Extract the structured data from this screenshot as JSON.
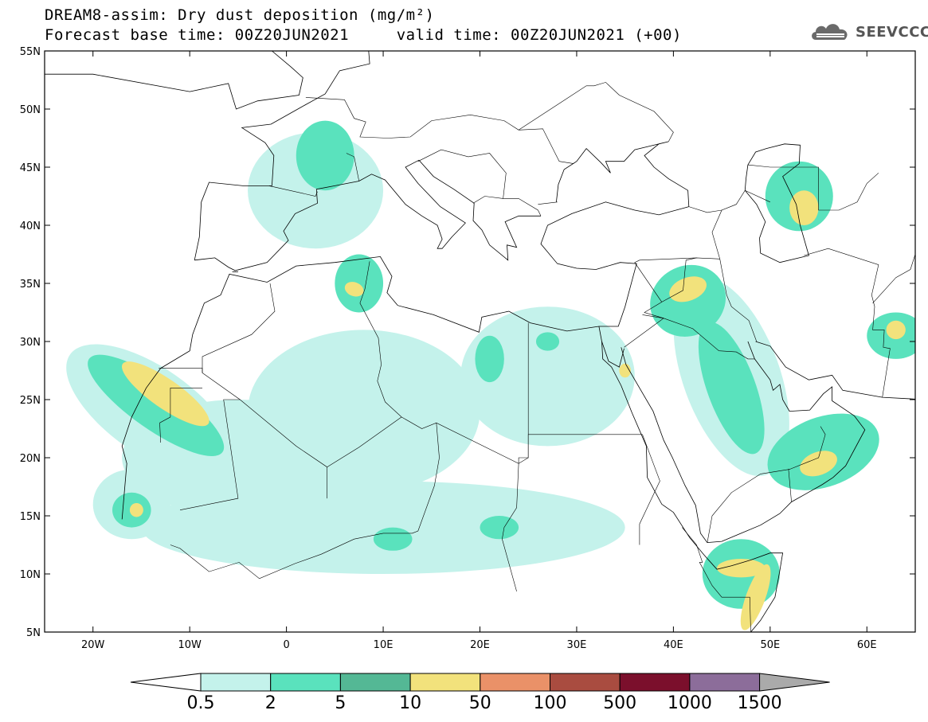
{
  "header": {
    "title_line1": "DREAM8-assim: Dry dust deposition (mg/m²)",
    "title_line2": "Forecast base time: 00Z20JUN2021     valid time: 00Z20JUN2021 (+00)"
  },
  "logo": {
    "text": "SEEVCCC",
    "icon": "cloud-logo-icon"
  },
  "map": {
    "projection": "latlon",
    "lon_range": [
      -25,
      65
    ],
    "lat_range": [
      5,
      55
    ],
    "lat_ticks": [
      {
        "value": 5,
        "label": "5N"
      },
      {
        "value": 10,
        "label": "10N"
      },
      {
        "value": 15,
        "label": "15N"
      },
      {
        "value": 20,
        "label": "20N"
      },
      {
        "value": 25,
        "label": "25N"
      },
      {
        "value": 30,
        "label": "30N"
      },
      {
        "value": 35,
        "label": "35N"
      },
      {
        "value": 40,
        "label": "40N"
      },
      {
        "value": 45,
        "label": "45N"
      },
      {
        "value": 50,
        "label": "50N"
      },
      {
        "value": 55,
        "label": "55N"
      }
    ],
    "lon_ticks": [
      {
        "value": -20,
        "label": "20W"
      },
      {
        "value": -10,
        "label": "10W"
      },
      {
        "value": 0,
        "label": "0"
      },
      {
        "value": 10,
        "label": "10E"
      },
      {
        "value": 20,
        "label": "20E"
      },
      {
        "value": 30,
        "label": "30E"
      },
      {
        "value": 40,
        "label": "40E"
      },
      {
        "value": 50,
        "label": "50E"
      },
      {
        "value": 60,
        "label": "60E"
      }
    ]
  },
  "colors": {
    "levels": [
      "#c4f2eb",
      "#5ae2bd",
      "#54b895",
      "#f2e27c",
      "#ea9168",
      "#a94c40",
      "#7b0f2c",
      "#8c6d9a"
    ],
    "low_arrow": "#ffffff",
    "high_arrow": "#aaaaaa",
    "coast": "#000000"
  },
  "colorbar": {
    "labels": [
      "0.5",
      "2",
      "5",
      "10",
      "50",
      "100",
      "500",
      "1000",
      "1500"
    ]
  },
  "deposition_regions": [
    {
      "name": "NW Africa coast",
      "lon": -14,
      "lat": 24,
      "rx": 4.5,
      "ry": 8.5,
      "rot": -55,
      "level": 0
    },
    {
      "name": "NW Africa coast",
      "lon": -13.5,
      "lat": 24.5,
      "rx": 2.5,
      "ry": 7,
      "rot": -55,
      "level": 1
    },
    {
      "name": "NW Africa coast",
      "lon": -12.5,
      "lat": 25.5,
      "rx": 1.5,
      "ry": 4.5,
      "rot": -55,
      "level": 3
    },
    {
      "name": "Senegal",
      "lon": -16,
      "lat": 16,
      "rx": 4,
      "ry": 3,
      "rot": 0,
      "level": 0
    },
    {
      "name": "Senegal",
      "lon": -16,
      "lat": 15.5,
      "rx": 2,
      "ry": 1.5,
      "rot": 0,
      "level": 1
    },
    {
      "name": "Senegal",
      "lon": -15.5,
      "lat": 15.5,
      "rx": 0.7,
      "ry": 0.6,
      "rot": 0,
      "level": 3
    },
    {
      "name": "Sahara west",
      "lon": -5,
      "lat": 20,
      "rx": 12,
      "ry": 5,
      "rot": 0,
      "level": 0
    },
    {
      "name": "Sahara central",
      "lon": 8,
      "lat": 24,
      "rx": 12,
      "ry": 7,
      "rot": 0,
      "level": 0
    },
    {
      "name": "Sahel",
      "lon": 10,
      "lat": 14,
      "rx": 25,
      "ry": 4,
      "rot": 0,
      "level": 0
    },
    {
      "name": "Sahel patches",
      "lon": 11,
      "lat": 13,
      "rx": 2,
      "ry": 1,
      "rot": 0,
      "level": 1
    },
    {
      "name": "Sahel patches",
      "lon": 22,
      "lat": 14,
      "rx": 2,
      "ry": 1,
      "rot": 0,
      "level": 1
    },
    {
      "name": "Tunisia",
      "lon": 7.5,
      "lat": 35,
      "rx": 2.5,
      "ry": 2.5,
      "rot": 0,
      "level": 1
    },
    {
      "name": "Tunisia",
      "lon": 7,
      "lat": 34.5,
      "rx": 1,
      "ry": 0.6,
      "rot": 20,
      "level": 3
    },
    {
      "name": "Libya/Egypt",
      "lon": 27,
      "lat": 27,
      "rx": 9,
      "ry": 6,
      "rot": 0,
      "level": 0
    },
    {
      "name": "Libya",
      "lon": 21,
      "lat": 28.5,
      "rx": 1.5,
      "ry": 2,
      "rot": 0,
      "level": 1
    },
    {
      "name": "Libya",
      "lon": 27,
      "lat": 30,
      "rx": 1.2,
      "ry": 0.8,
      "rot": 0,
      "level": 1
    },
    {
      "name": "Iraq",
      "lon": 41.5,
      "lat": 33.5,
      "rx": 4,
      "ry": 3,
      "rot": -30,
      "level": 1
    },
    {
      "name": "Iraq",
      "lon": 41.5,
      "lat": 34.5,
      "rx": 2,
      "ry": 1,
      "rot": -20,
      "level": 3
    },
    {
      "name": "Mesopotamia-Arabia",
      "lon": 46,
      "lat": 27,
      "rx": 5,
      "ry": 9,
      "rot": -20,
      "level": 0
    },
    {
      "name": "Mesopotamia-Arabia",
      "lon": 46,
      "lat": 26,
      "rx": 2.5,
      "ry": 6,
      "rot": -20,
      "level": 1
    },
    {
      "name": "Caspian",
      "lon": 53,
      "lat": 42.5,
      "rx": 3.5,
      "ry": 3,
      "rot": 0,
      "level": 1
    },
    {
      "name": "Caspian",
      "lon": 53.5,
      "lat": 41.5,
      "rx": 1.5,
      "ry": 1.5,
      "rot": 0,
      "level": 3
    },
    {
      "name": "Oman",
      "lon": 55.5,
      "lat": 20.5,
      "rx": 6,
      "ry": 3,
      "rot": -20,
      "level": 1
    },
    {
      "name": "Oman",
      "lon": 55,
      "lat": 19.5,
      "rx": 2,
      "ry": 1,
      "rot": -20,
      "level": 3
    },
    {
      "name": "Somalia",
      "lon": 47,
      "lat": 10,
      "rx": 4,
      "ry": 3,
      "rot": 0,
      "level": 1
    },
    {
      "name": "Somalia",
      "lon": 47,
      "lat": 10.5,
      "rx": 2.5,
      "ry": 0.8,
      "rot": 0,
      "level": 3
    },
    {
      "name": "Somalia coast",
      "lon": 48.5,
      "lat": 8,
      "rx": 1,
      "ry": 3,
      "rot": 20,
      "level": 3
    },
    {
      "name": "Iran/Pakistan",
      "lon": 63,
      "lat": 30.5,
      "rx": 3,
      "ry": 2,
      "rot": 0,
      "level": 1
    },
    {
      "name": "Iran/Pakistan",
      "lon": 63,
      "lat": 31,
      "rx": 1,
      "ry": 0.8,
      "rot": 0,
      "level": 3
    },
    {
      "name": "Red Sea",
      "lon": 35,
      "lat": 27.5,
      "rx": 0.6,
      "ry": 0.6,
      "rot": 0,
      "level": 3
    },
    {
      "name": "France",
      "lon": 4,
      "lat": 46,
      "rx": 3,
      "ry": 3,
      "rot": 0,
      "level": 1
    },
    {
      "name": "Europe west",
      "lon": 3,
      "lat": 43,
      "rx": 7,
      "ry": 5,
      "rot": 0,
      "level": 0
    }
  ]
}
